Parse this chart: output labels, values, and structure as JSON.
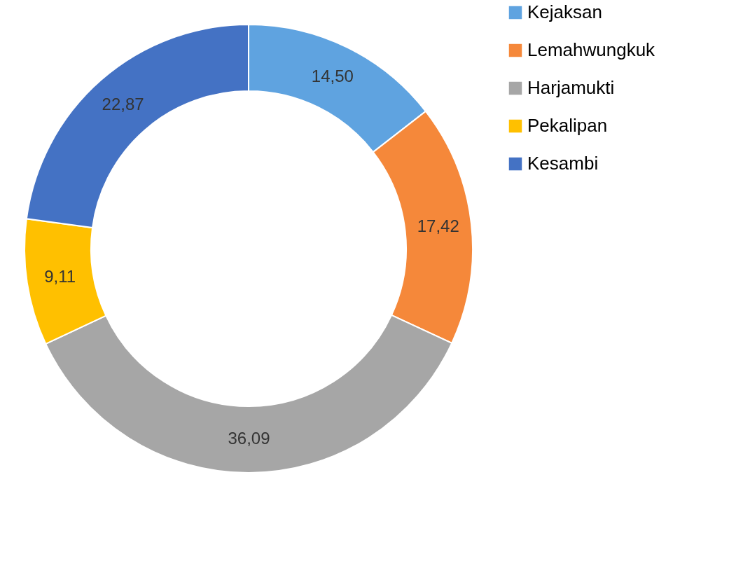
{
  "chart_data": {
    "type": "donut",
    "categories": [
      "Kejaksan",
      "Lemahwungkuk",
      "Harjamukti",
      "Pekalipan",
      "Kesambi"
    ],
    "values": [
      14.5,
      17.42,
      36.09,
      9.11,
      22.87
    ],
    "value_labels": [
      "14,50",
      "17,42",
      "36,09",
      "9,11",
      "22,87"
    ],
    "colors": [
      "#5fa3e0",
      "#f5883a",
      "#a6a6a6",
      "#ffc000",
      "#4472c4"
    ],
    "legend": "right"
  }
}
